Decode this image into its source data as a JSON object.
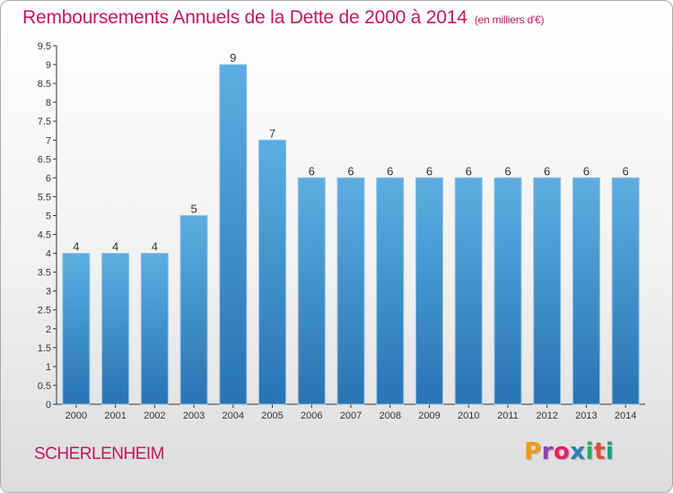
{
  "header": {
    "title": "Remboursements Annuels de la Dette de 2000 à 2014",
    "subtitle": "(en milliers d'€)"
  },
  "footer": {
    "commune": "SCHERLENHEIM",
    "brand_letters": [
      "P",
      "r",
      "o",
      "x",
      "i",
      "t",
      "i"
    ],
    "brand_colors": [
      "#f39c12",
      "#8e44ad",
      "#e91e63",
      "#2980b9",
      "#27ae60",
      "#e74c3c",
      "#16a085"
    ]
  },
  "colors": {
    "accent": "#c2185b",
    "bar_top": "#5dade2",
    "bar_bottom": "#2874b3"
  },
  "chart_data": {
    "type": "bar",
    "title": "Remboursements Annuels de la Dette de 2000 à 2014",
    "subtitle": "(en milliers d'€)",
    "categories": [
      "2000",
      "2001",
      "2002",
      "2003",
      "2004",
      "2005",
      "2006",
      "2007",
      "2008",
      "2009",
      "2010",
      "2011",
      "2012",
      "2013",
      "2014"
    ],
    "values": [
      4,
      4,
      4,
      5,
      9,
      7,
      6,
      6,
      6,
      6,
      6,
      6,
      6,
      6,
      6
    ],
    "ylim": [
      0,
      9.5
    ],
    "yticks": [
      "0",
      "0.5",
      "1",
      "1.5",
      "2",
      "2.5",
      "3",
      "3.5",
      "4",
      "4.5",
      "5",
      "5.5",
      "6",
      "6.5",
      "7",
      "7.5",
      "8",
      "8.5",
      "9",
      "9.5"
    ],
    "grid": false,
    "legend": "none"
  }
}
